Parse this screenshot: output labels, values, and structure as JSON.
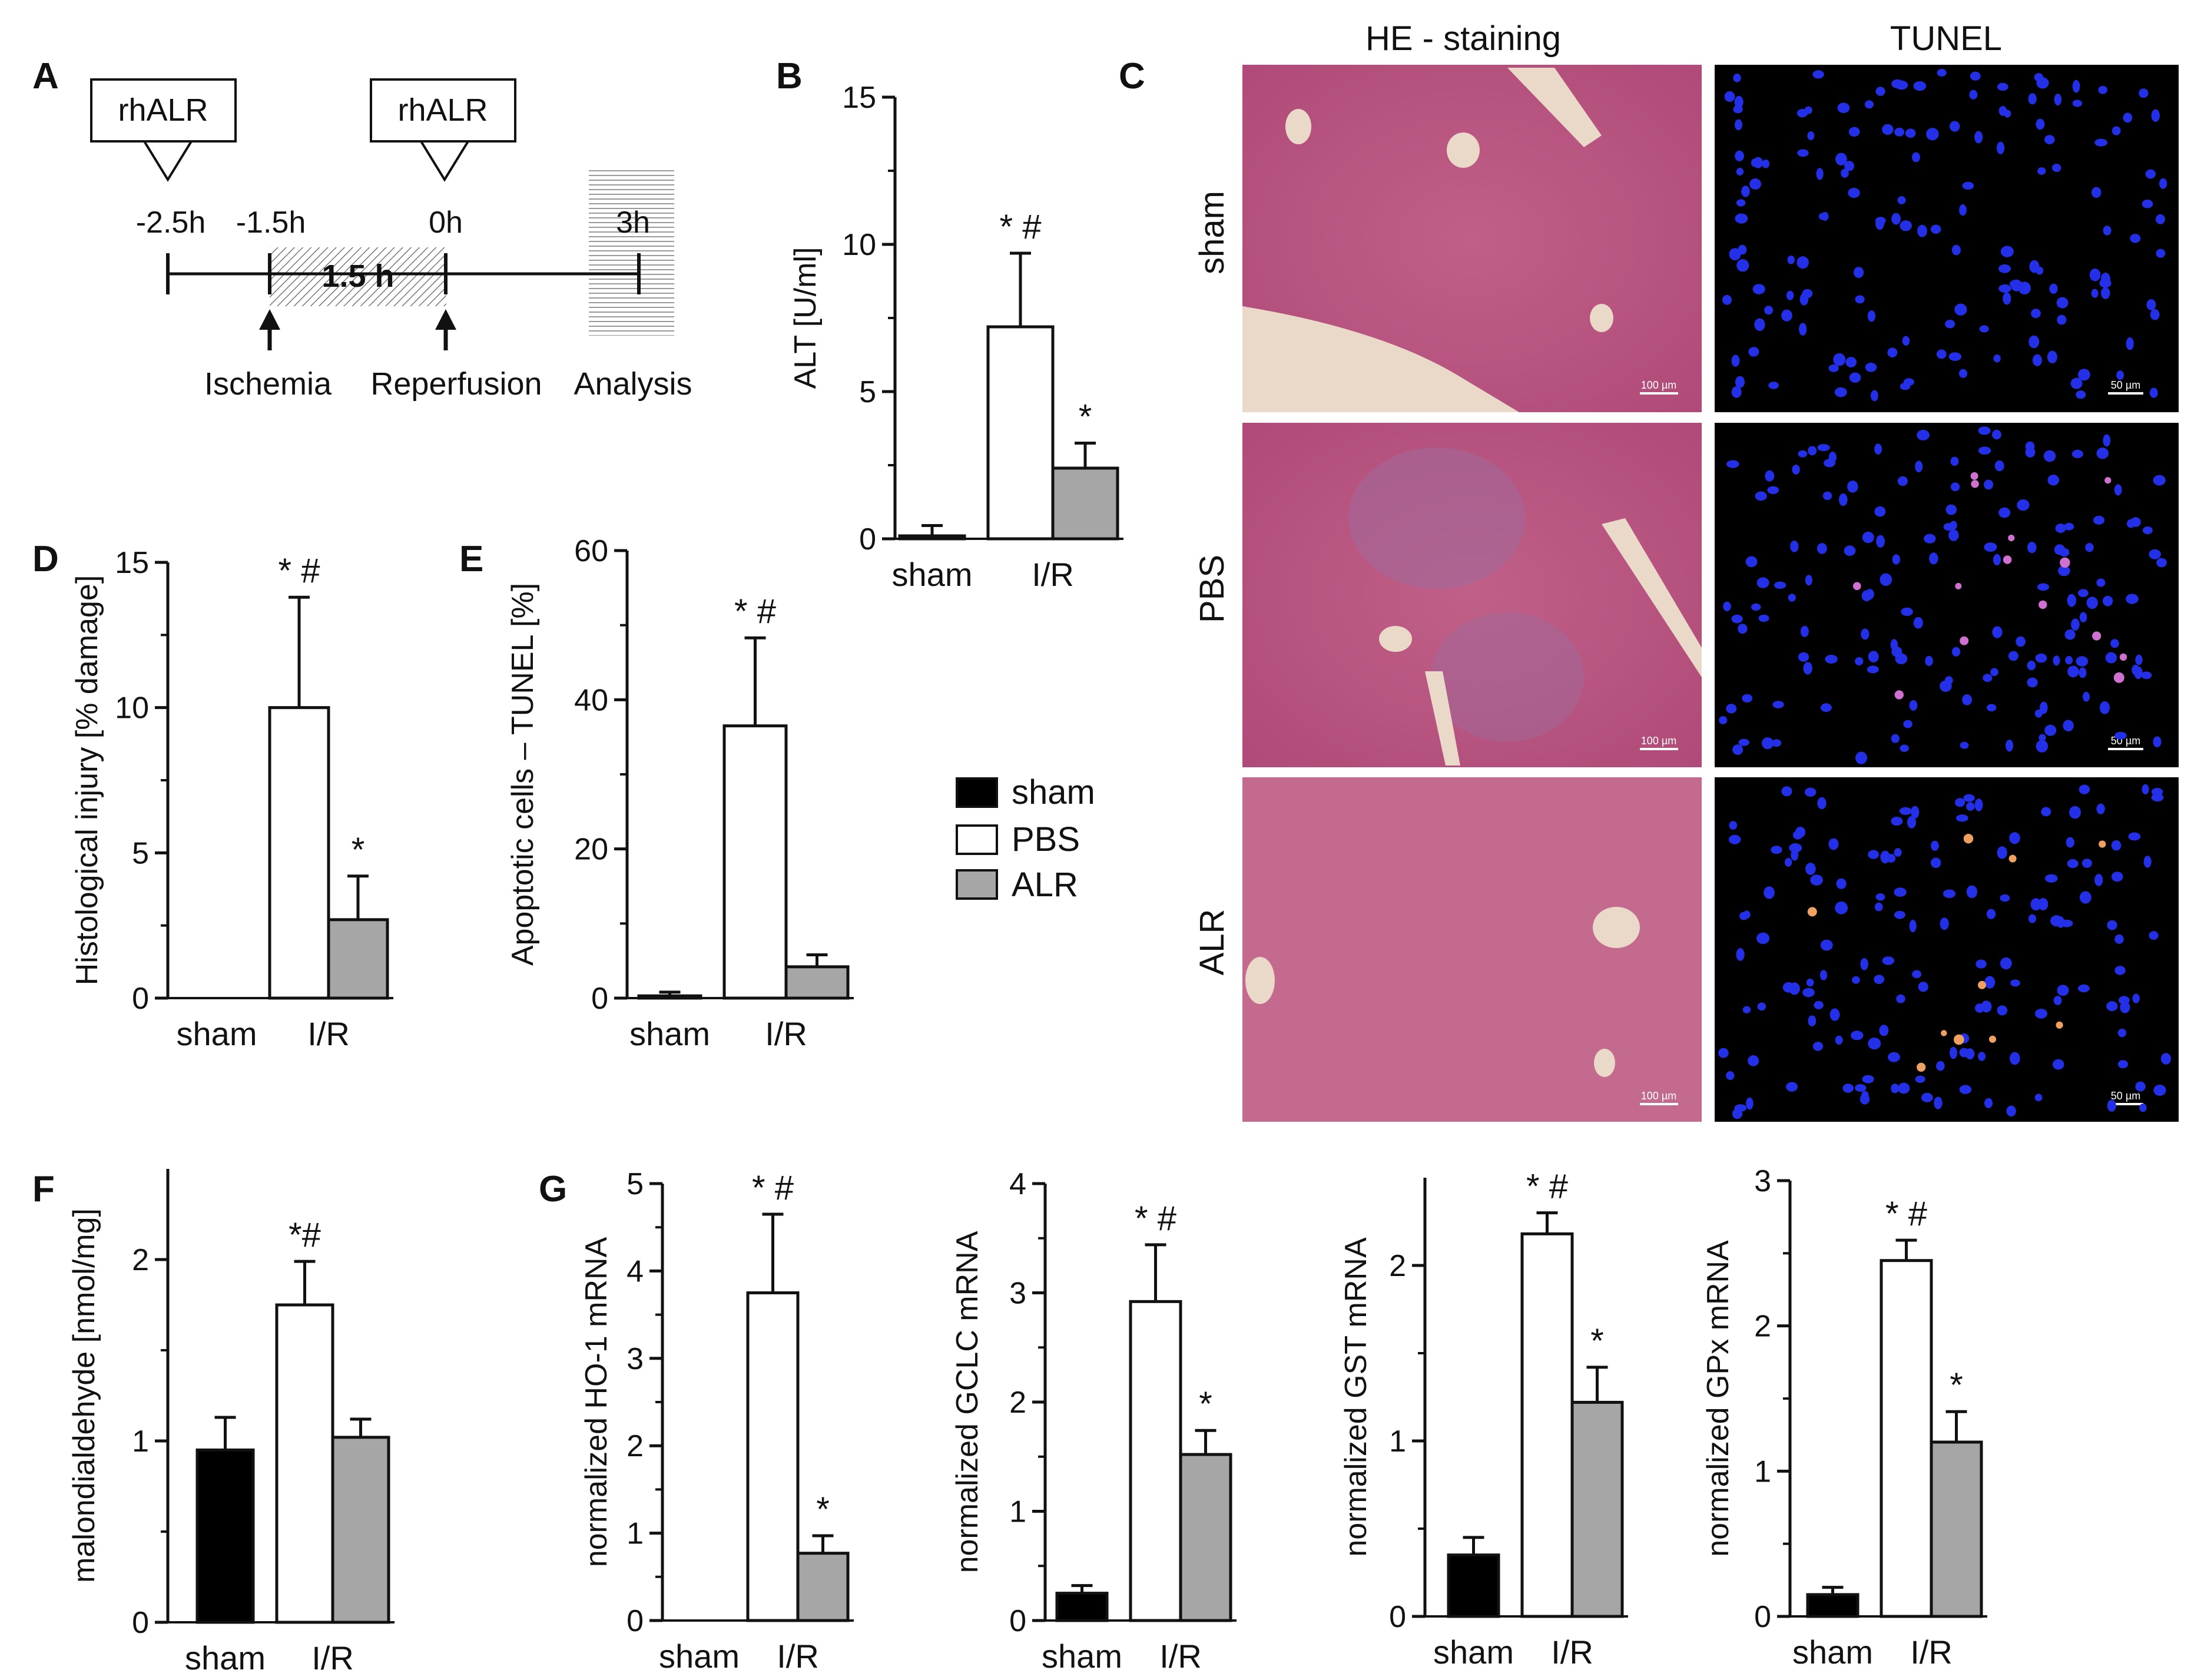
{
  "panel_letters": [
    "A",
    "B",
    "C",
    "D",
    "E",
    "F",
    "G"
  ],
  "timeline": {
    "boxes": [
      "rhALR",
      "rhALR"
    ],
    "times": [
      "-2.5h",
      "-1.5h",
      "0h",
      "3h"
    ],
    "duration": "1.5 h",
    "events": [
      "Ischemia",
      "Reperfusion",
      "Analysis"
    ]
  },
  "micrographs": {
    "columns": [
      "HE - staining",
      "TUNEL"
    ],
    "rows": [
      "sham",
      "PBS",
      "ALR"
    ],
    "scale_he": "100 µm",
    "scale_tunel": "50 µm"
  },
  "legend": {
    "items": [
      {
        "name": "sham",
        "color": "#000000"
      },
      {
        "name": "PBS",
        "color": "#ffffff"
      },
      {
        "name": "ALR",
        "color": "#a6a6a6"
      }
    ]
  },
  "colors": {
    "sham": "#000000",
    "PBS": "#ffffff",
    "ALR": "#a6a6a6"
  },
  "chart_data": [
    {
      "id": "B",
      "type": "bar",
      "ylabel": "ALT [U/ml]",
      "ylim": [
        0,
        15
      ],
      "yticks": [
        "0",
        "5",
        "10",
        "15"
      ],
      "groups": [
        "sham",
        "I/R"
      ],
      "bars": [
        {
          "series": "sham",
          "value": 0.1,
          "err": 0.35
        },
        {
          "series": "PBS",
          "value": 7.2,
          "err": 2.5,
          "sig": "* #"
        },
        {
          "series": "ALR",
          "value": 2.4,
          "err": 0.85,
          "sig": "*"
        }
      ]
    },
    {
      "id": "D",
      "type": "bar",
      "ylabel": "Histological injury  [% damage]",
      "ylim": [
        0,
        15
      ],
      "yticks": [
        "0",
        "5",
        "10",
        "15"
      ],
      "groups": [
        "sham",
        "I/R"
      ],
      "bars": [
        {
          "series": "sham",
          "value": 0,
          "err": 0
        },
        {
          "series": "PBS",
          "value": 10,
          "err": 3.8,
          "sig": "* #"
        },
        {
          "series": "ALR",
          "value": 2.7,
          "err": 1.5,
          "sig": "*"
        }
      ]
    },
    {
      "id": "E",
      "type": "bar",
      "ylabel": "Apoptotic cells – TUNEL  [%]",
      "ylim": [
        0,
        60
      ],
      "yticks": [
        "0",
        "20",
        "40",
        "60"
      ],
      "groups": [
        "sham",
        "I/R"
      ],
      "bars": [
        {
          "series": "sham",
          "value": 0.3,
          "err": 0.5
        },
        {
          "series": "PBS",
          "value": 36.5,
          "err": 11.8,
          "sig": "* #"
        },
        {
          "series": "ALR",
          "value": 4.2,
          "err": 1.6
        }
      ]
    },
    {
      "id": "F",
      "type": "bar",
      "ylabel": "malondialdehyde  [nmol/mg]",
      "ylim": [
        0,
        2.5
      ],
      "yticks": [
        "0",
        "1",
        "2"
      ],
      "groups": [
        "sham",
        "I/R"
      ],
      "bars": [
        {
          "series": "sham",
          "value": 0.95,
          "err": 0.18
        },
        {
          "series": "PBS",
          "value": 1.75,
          "err": 0.24,
          "sig": "*#"
        },
        {
          "series": "ALR",
          "value": 1.02,
          "err": 0.1
        }
      ]
    },
    {
      "id": "G1",
      "type": "bar",
      "ylabel": "normalized HO-1 mRNA",
      "ylim": [
        0,
        5
      ],
      "yticks": [
        "0",
        "1",
        "2",
        "3",
        "4",
        "5"
      ],
      "groups": [
        "sham",
        "I/R"
      ],
      "bars": [
        {
          "series": "sham",
          "value": 0,
          "err": 0
        },
        {
          "series": "PBS",
          "value": 3.75,
          "err": 0.9,
          "sig": "* #"
        },
        {
          "series": "ALR",
          "value": 0.77,
          "err": 0.2,
          "sig": "*"
        }
      ]
    },
    {
      "id": "G2",
      "type": "bar",
      "ylabel": "normalized GCLC mRNA",
      "ylim": [
        0,
        4
      ],
      "yticks": [
        "0",
        "1",
        "2",
        "3",
        "4"
      ],
      "groups": [
        "sham",
        "I/R"
      ],
      "bars": [
        {
          "series": "sham",
          "value": 0.25,
          "err": 0.07
        },
        {
          "series": "PBS",
          "value": 2.92,
          "err": 0.52,
          "sig": "* #"
        },
        {
          "series": "ALR",
          "value": 1.52,
          "err": 0.22,
          "sig": "*"
        }
      ]
    },
    {
      "id": "G3",
      "type": "bar",
      "ylabel": "normalized GST mRNA",
      "ylim": [
        0,
        2.5
      ],
      "yticks": [
        "0",
        "1",
        "2"
      ],
      "groups": [
        "sham",
        "I/R"
      ],
      "bars": [
        {
          "series": "sham",
          "value": 0.35,
          "err": 0.1
        },
        {
          "series": "PBS",
          "value": 2.18,
          "err": 0.12,
          "sig": "* #"
        },
        {
          "series": "ALR",
          "value": 1.22,
          "err": 0.2,
          "sig": "*"
        }
      ]
    },
    {
      "id": "G4",
      "type": "bar",
      "ylabel": "normalized GPx mRNA",
      "ylim": [
        0,
        3
      ],
      "yticks": [
        "0",
        "1",
        "2",
        "3"
      ],
      "groups": [
        "sham",
        "I/R"
      ],
      "bars": [
        {
          "series": "sham",
          "value": 0.15,
          "err": 0.05
        },
        {
          "series": "PBS",
          "value": 2.45,
          "err": 0.14,
          "sig": "* #"
        },
        {
          "series": "ALR",
          "value": 1.2,
          "err": 0.21,
          "sig": "*"
        }
      ]
    }
  ]
}
